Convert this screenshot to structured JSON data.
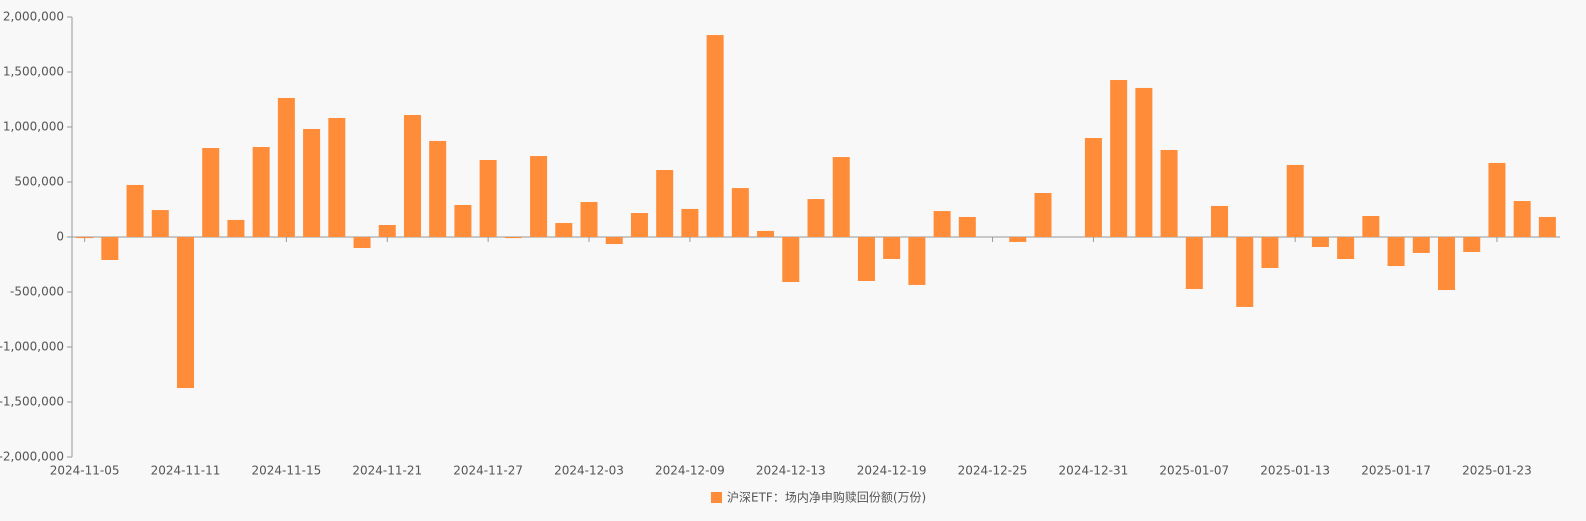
{
  "chart_data": {
    "type": "bar",
    "categories": [
      "2024-11-05",
      null,
      null,
      null,
      "2024-11-11",
      null,
      null,
      null,
      "2024-11-15",
      null,
      null,
      null,
      "2024-11-21",
      null,
      null,
      null,
      "2024-11-27",
      null,
      null,
      null,
      "2024-12-03",
      null,
      null,
      null,
      "2024-12-09",
      null,
      null,
      null,
      "2024-12-13",
      null,
      null,
      null,
      "2024-12-19",
      null,
      null,
      null,
      "2024-12-25",
      null,
      null,
      null,
      "2024-12-31",
      null,
      null,
      null,
      "2025-01-07",
      null,
      null,
      null,
      "2025-01-13",
      null,
      null,
      null,
      "2025-01-17",
      null,
      null,
      null,
      "2025-01-23",
      null,
      null
    ],
    "series": [
      {
        "name": "沪深ETF：场内净申购赎回份额(万份)",
        "color": "#ff8c38",
        "values": [
          -10000,
          -209000,
          473000,
          245000,
          -1373000,
          809000,
          155000,
          818000,
          1264000,
          982000,
          1082000,
          -100000,
          109000,
          1109000,
          873000,
          291000,
          700000,
          -10000,
          736000,
          127000,
          318000,
          -64000,
          218000,
          609000,
          255000,
          1836000,
          445000,
          55000,
          -409000,
          345000,
          727000,
          -400000,
          -200000,
          -436000,
          236000,
          182000,
          0,
          -45000,
          400000,
          0,
          900000,
          1427000,
          1355000,
          791000,
          -473000,
          282000,
          -636000,
          -282000,
          655000,
          -91000,
          -200000,
          191000,
          -264000,
          -145000,
          -482000,
          -136000,
          673000,
          327000,
          182000
        ]
      }
    ],
    "ylim": [
      -2000000,
      2000000
    ],
    "yticks": [
      {
        "value": -2000000,
        "label": "-2,000,000"
      },
      {
        "value": -1500000,
        "label": "-1,500,000"
      },
      {
        "value": -1000000,
        "label": "-1,000,000"
      },
      {
        "value": -500000,
        "label": "-500,000"
      },
      0,
      {
        "value": 500000,
        "label": "500,000"
      },
      {
        "value": 1000000,
        "label": "1,000,000"
      },
      {
        "value": 1500000,
        "label": "1,500,000"
      },
      {
        "value": 2000000,
        "label": "2,000,000"
      }
    ],
    "legend": "bottom"
  }
}
